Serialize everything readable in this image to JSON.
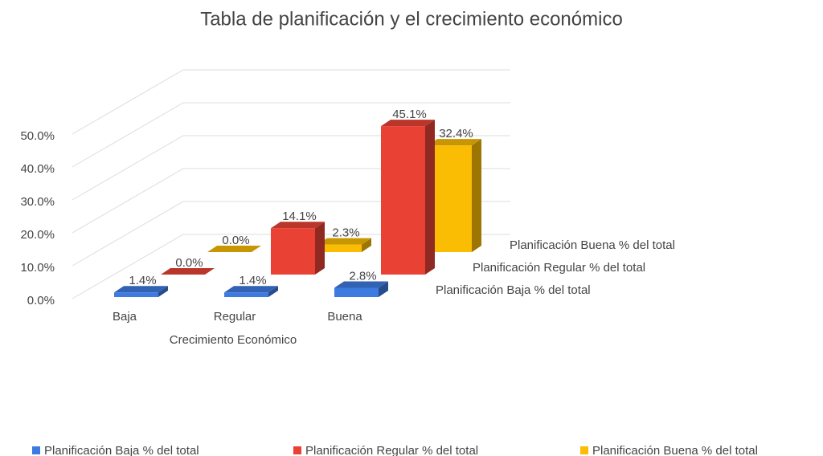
{
  "chart_data": {
    "type": "bar3d",
    "title": "Tabla de planificación y el crecimiento económico",
    "x_label": "Crecimiento Económico",
    "categories": [
      "Baja",
      "Regular",
      "Buena"
    ],
    "series": [
      {
        "name": "Planificación Baja % del total",
        "color": "#3d7be0",
        "values": [
          1.4,
          1.4,
          2.8
        ],
        "value_labels": [
          "1.4%",
          "1.4%",
          "2.8%"
        ]
      },
      {
        "name": "Planificación Regular % del total",
        "color": "#e94235",
        "values": [
          0.0,
          14.1,
          45.1
        ],
        "value_labels": [
          "0.0%",
          "14.1%",
          "45.1%"
        ]
      },
      {
        "name": "Planificación Buena % del total",
        "color": "#fbbc04",
        "values": [
          0.0,
          2.3,
          32.4
        ],
        "value_labels": [
          "0.0%",
          "2.3%",
          "32.4%"
        ]
      }
    ],
    "ylim": [
      0,
      50
    ],
    "yticks": [
      {
        "value": 0,
        "label": "0.0%"
      },
      {
        "value": 10,
        "label": "10.0%"
      },
      {
        "value": 20,
        "label": "20.0%"
      },
      {
        "value": 30,
        "label": "30.0%"
      },
      {
        "value": 40,
        "label": "40.0%"
      },
      {
        "value": 50,
        "label": "50.0%"
      }
    ],
    "grid": true,
    "legend": "bottom"
  }
}
